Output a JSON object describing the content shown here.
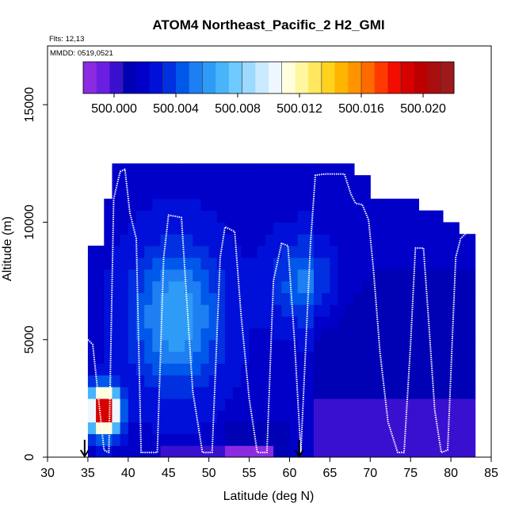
{
  "chart_data": {
    "type": "heatmap",
    "title": "ATOM4 Northeast_Pacific_2 H2_GMI",
    "flights_label": "Flts: 12,13",
    "mmdd_label": "MMDD: 0519,0521",
    "xlabel": "Latitude (deg N)",
    "ylabel": "Altitude (m)",
    "xlim": [
      30,
      85
    ],
    "ylim": [
      0,
      17500
    ],
    "x_ticks": [
      "30",
      "35",
      "40",
      "45",
      "50",
      "55",
      "60",
      "65",
      "70",
      "75",
      "80",
      "85"
    ],
    "y_ticks": [
      "0",
      "5000",
      "10000",
      "15000"
    ],
    "colorbar": {
      "range": [
        499.998,
        500.022
      ],
      "tick_labels": [
        "500.000",
        "500.004",
        "500.008",
        "500.012",
        "500.016",
        "500.020"
      ],
      "tick_values": [
        500.0,
        500.004,
        500.008,
        500.012,
        500.016,
        500.02
      ],
      "colors": [
        "#8a2be2",
        "#6a1fe0",
        "#3a10d0",
        "#0000b4",
        "#0000c8",
        "#0010d8",
        "#0030e0",
        "#0058ea",
        "#1e7ff2",
        "#2e9bf6",
        "#48b4fa",
        "#6ecaff",
        "#9ed9ff",
        "#cbeaff",
        "#eef7ff",
        "#ffffe0",
        "#fff6a0",
        "#ffe760",
        "#ffd21e",
        "#ffb400",
        "#ff9400",
        "#ff6a00",
        "#ff3a00",
        "#f20d00",
        "#d60000",
        "#bc0000",
        "#a80e0e",
        "#9e1a1a"
      ]
    },
    "column_edges": [
      33.5,
      35,
      36,
      37,
      38,
      39,
      40,
      41,
      42,
      43,
      44,
      45,
      46,
      47,
      48,
      49,
      50,
      51,
      52,
      53,
      54,
      55,
      56,
      57,
      58,
      59,
      60,
      61,
      62,
      63,
      64,
      65,
      66,
      67,
      68,
      69,
      70,
      71,
      72,
      73,
      74,
      75,
      76,
      77,
      78,
      79,
      80,
      81,
      82,
      83
    ],
    "layer_edges": [
      0,
      500,
      1000,
      1500,
      2000,
      2500,
      3000,
      3500,
      4000,
      4500,
      5000,
      5500,
      6000,
      6500,
      7000,
      7500,
      8000,
      8500,
      9000,
      9500,
      10000,
      10500,
      11000,
      11500,
      12000,
      12500
    ],
    "flight_track": {
      "lat": [
        35.0,
        35.6,
        37.0,
        37.6,
        38.2,
        39.0,
        39.6,
        40.2,
        41.0,
        41.6,
        42.6,
        43.6,
        44.4,
        45.0,
        46.6,
        47.2,
        48.0,
        49.2,
        50.4,
        51.4,
        52.0,
        53.2,
        54.0,
        55.0,
        56.0,
        57.2,
        58.0,
        59.0,
        59.8,
        60.6,
        61.4,
        62.6,
        63.2,
        64.4,
        65.4,
        66.8,
        67.6,
        68.2,
        69.0,
        69.8,
        70.4,
        71.2,
        72.2,
        73.4,
        74.2,
        75.0,
        75.6,
        76.6,
        77.2,
        78.0,
        78.8,
        79.6,
        80.6,
        81.2,
        81.8
      ],
      "alt": [
        5000,
        4800,
        300,
        200,
        11000,
        12150,
        12250,
        10400,
        9300,
        200,
        200,
        200,
        8500,
        10300,
        10200,
        7000,
        2800,
        200,
        200,
        8500,
        9800,
        9600,
        6000,
        2500,
        200,
        200,
        7500,
        9100,
        9000,
        5000,
        200,
        9100,
        12000,
        12050,
        12050,
        12050,
        11200,
        10800,
        10750,
        10100,
        8000,
        4500,
        1500,
        200,
        200,
        4800,
        8900,
        8900,
        6000,
        2000,
        200,
        300,
        8500,
        9300,
        9500
      ]
    },
    "arrows_lat": [
      34.6,
      61.2
    ],
    "grid": false,
    "colorbar_placement": "top"
  }
}
